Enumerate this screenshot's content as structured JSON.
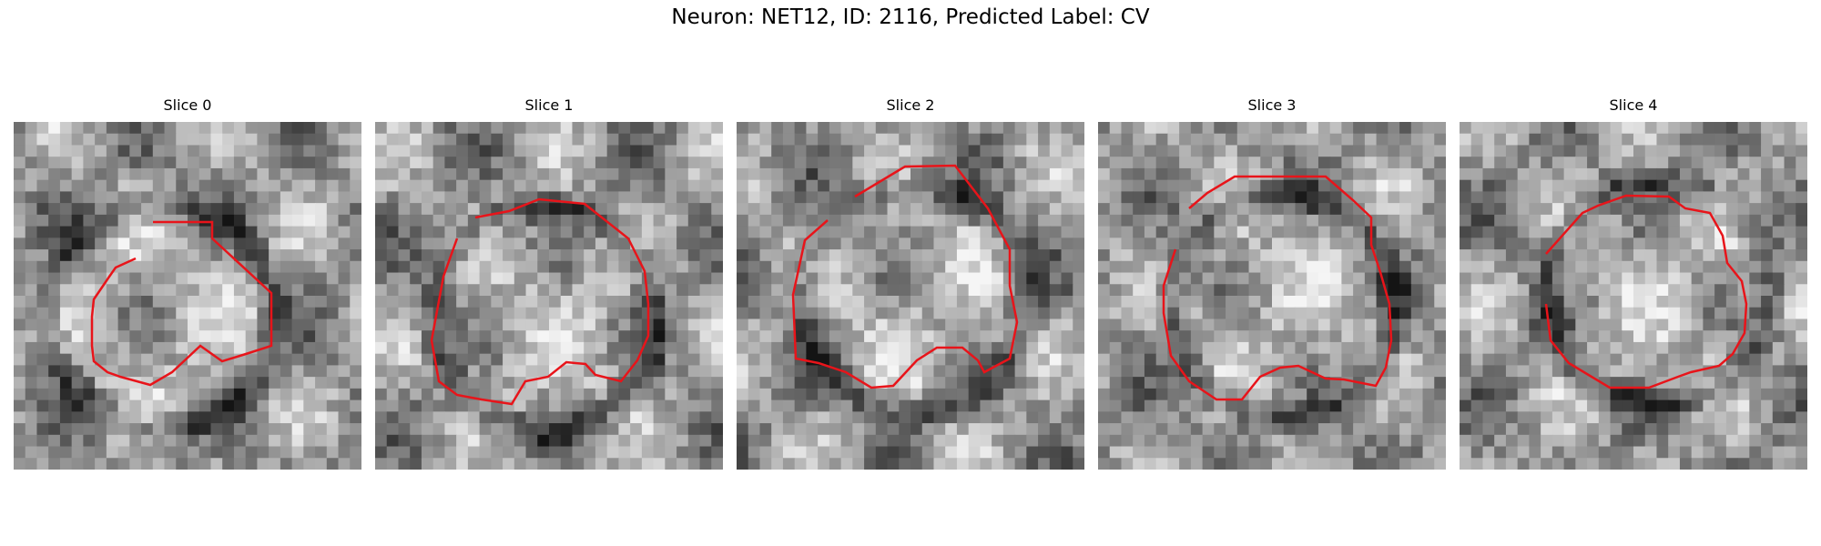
{
  "figure": {
    "title": "Neuron: NET12, ID: 2116, Predicted Label: CV"
  },
  "panels": [
    {
      "label": "Slice 0"
    },
    {
      "label": "Slice 1"
    },
    {
      "label": "Slice 2"
    },
    {
      "label": "Slice 3"
    },
    {
      "label": "Slice 4"
    }
  ],
  "colors": {
    "contour": "#e8141a",
    "background": "#ffffff"
  }
}
